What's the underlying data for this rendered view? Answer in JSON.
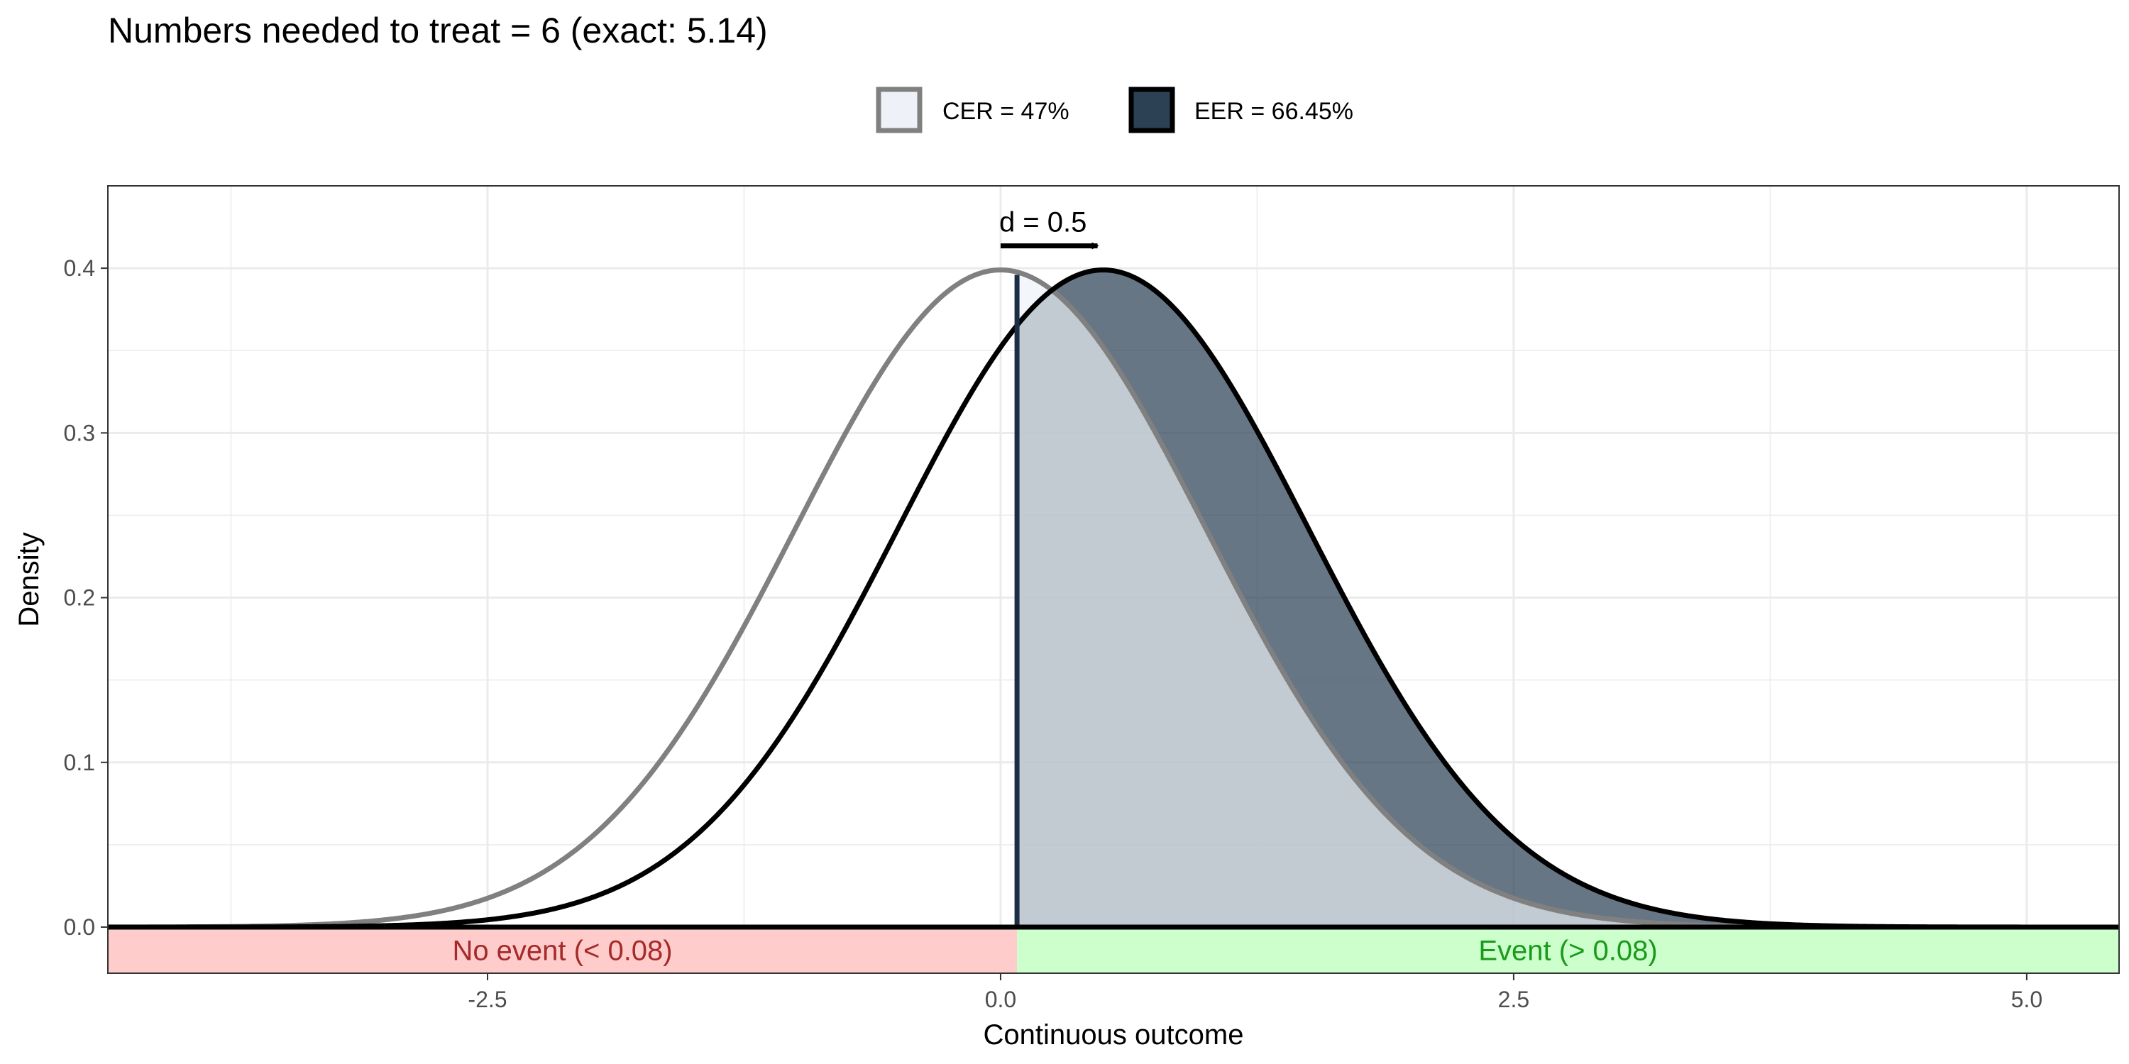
{
  "chart_data": {
    "type": "area",
    "title": "Numbers needed to treat = 6 (exact: 5.14)",
    "xlabel": "Continuous outcome",
    "ylabel": "Density",
    "xlim": [
      -4.35,
      5.45
    ],
    "ylim": [
      -0.028,
      0.45
    ],
    "x_ticks": [
      -2.5,
      0,
      2.5,
      5
    ],
    "x_tick_labels": [
      "-2.5",
      "0.0",
      "2.5",
      "5.0"
    ],
    "y_ticks": [
      0,
      0.1,
      0.2,
      0.3,
      0.4
    ],
    "y_tick_labels": [
      "0.0",
      "0.1",
      "0.2",
      "0.3",
      "0.4"
    ],
    "grid": true,
    "legend_position": "top",
    "threshold": 0.08,
    "series": [
      {
        "name": "CER = 47%",
        "distribution": "normal",
        "mean": 0.0,
        "sd": 1.0,
        "line_color": "#808080",
        "fill_color": "#eef2f8",
        "shaded_above_threshold_fraction": 0.47
      },
      {
        "name": "EER = 66.45%",
        "distribution": "normal",
        "mean": 0.5,
        "sd": 1.0,
        "line_color": "#000000",
        "fill_color": "#2d4155",
        "shaded_above_threshold_fraction": 0.6645
      }
    ],
    "effect_annotation": {
      "label": "d = 0.5",
      "from": 0.0,
      "to": 0.5
    },
    "regions": [
      {
        "label": "No event (< 0.08)",
        "from": -4.35,
        "to": 0.08,
        "color": "#ffcccc",
        "text_color": "#a52a2a"
      },
      {
        "label": "Event (> 0.08)",
        "from": 0.08,
        "to": 5.45,
        "color": "#ccffcc",
        "text_color": "#1a9a1a"
      }
    ],
    "colors": {
      "threshold_line": "#1c2e44",
      "grid": "#ebebeb",
      "panel_border": "#333333"
    }
  }
}
